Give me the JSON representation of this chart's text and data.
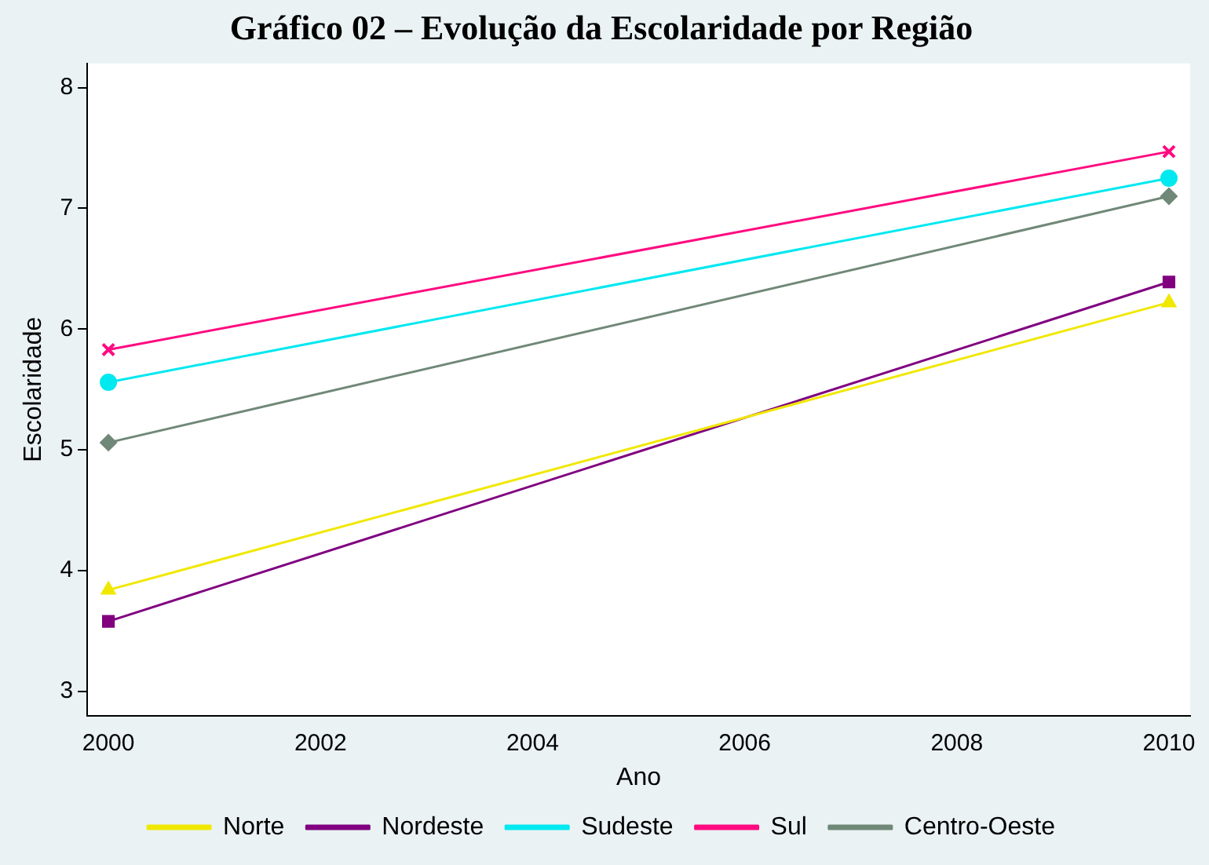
{
  "chart_data": {
    "type": "line",
    "title": "Gráfico 02 – Evolução da Escolaridade por Região",
    "xlabel": "Ano",
    "ylabel": "Escolaridade",
    "x": [
      2000,
      2010
    ],
    "series": [
      {
        "name": "Norte",
        "color": "#f0e800",
        "marker": "triangle",
        "values": [
          3.84,
          6.22
        ]
      },
      {
        "name": "Nordeste",
        "color": "#800080",
        "marker": "square",
        "values": [
          3.58,
          6.39
        ]
      },
      {
        "name": "Sudeste",
        "color": "#00e8f0",
        "marker": "circle",
        "values": [
          5.56,
          7.25
        ]
      },
      {
        "name": "Sul",
        "color": "#ff0a80",
        "marker": "cross",
        "values": [
          5.83,
          7.47
        ]
      },
      {
        "name": "Centro-Oeste",
        "color": "#708878",
        "marker": "diamond",
        "values": [
          5.06,
          7.1
        ]
      }
    ],
    "xlim": [
      1999.8,
      2010.2
    ],
    "xticks": [
      2000,
      2002,
      2004,
      2006,
      2008,
      2010
    ],
    "ylim": [
      2.8,
      8.2
    ],
    "yticks": [
      3,
      4,
      5,
      6,
      7,
      8
    ],
    "grid": false,
    "legend": "bottom",
    "line_style": "solid"
  }
}
